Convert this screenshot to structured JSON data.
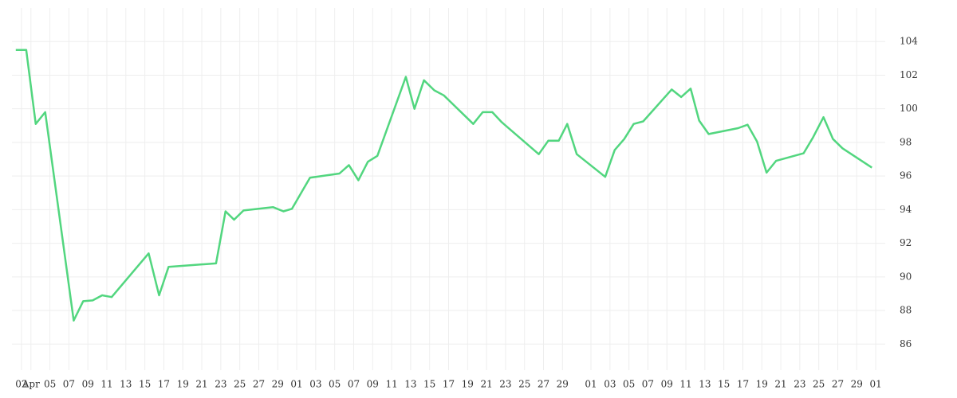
{
  "chart_data": {
    "type": "line",
    "x": [
      -0.6,
      0.5,
      1.5,
      2.5,
      5.5,
      6.5,
      7.5,
      8.5,
      9.5,
      12.5,
      13.4,
      14.5,
      15.5,
      20.5,
      21.5,
      22.4,
      23.4,
      26.5,
      27.6,
      28.5,
      30.4,
      33.5,
      34.5,
      35.5,
      36.5,
      37.5,
      40.5,
      41.4,
      42.4,
      43.5,
      44.5,
      47.6,
      48.6,
      49.6,
      50.6,
      54.5,
      55.5,
      56.6,
      57.5,
      58.5,
      61.5,
      62.5,
      63.5,
      64.5,
      65.5,
      68.5,
      69.5,
      70.5,
      71.4,
      72.4,
      75.5,
      76.5,
      77.5,
      78.5,
      79.5,
      82.4,
      83.4,
      84.5,
      85.5,
      86.5,
      89.6
    ],
    "series": [
      {
        "color": "#52d67f",
        "values": [
          103.5,
          103.5,
          99.1,
          99.8,
          87.4,
          88.55,
          88.6,
          88.9,
          88.8,
          90.8,
          91.4,
          88.9,
          90.6,
          90.8,
          93.9,
          93.4,
          93.95,
          94.15,
          93.9,
          94.05,
          95.9,
          96.15,
          96.65,
          95.75,
          96.85,
          97.2,
          101.9,
          100.0,
          101.7,
          101.1,
          100.8,
          99.1,
          99.8,
          99.8,
          99.2,
          97.3,
          98.1,
          98.1,
          99.1,
          97.3,
          95.95,
          97.55,
          98.2,
          99.1,
          99.25,
          101.15,
          100.7,
          101.2,
          99.3,
          98.5,
          98.85,
          99.05,
          98.05,
          96.2,
          96.9,
          97.35,
          98.3,
          99.5,
          98.2,
          97.65,
          96.5
        ]
      }
    ],
    "xlim": [
      -1,
      91
    ],
    "xticks": [
      {
        "value": 0,
        "label": "02"
      },
      {
        "value": 1,
        "label": "Apr"
      },
      {
        "value": 3,
        "label": "05"
      },
      {
        "value": 5,
        "label": "07"
      },
      {
        "value": 7,
        "label": "09"
      },
      {
        "value": 9,
        "label": "11"
      },
      {
        "value": 11,
        "label": "13"
      },
      {
        "value": 13,
        "label": "15"
      },
      {
        "value": 15,
        "label": "17"
      },
      {
        "value": 17,
        "label": "19"
      },
      {
        "value": 19,
        "label": "21"
      },
      {
        "value": 21,
        "label": "23"
      },
      {
        "value": 23,
        "label": "25"
      },
      {
        "value": 25,
        "label": "27"
      },
      {
        "value": 27,
        "label": "29"
      },
      {
        "value": 29,
        "label": "01"
      },
      {
        "value": 31,
        "label": "03"
      },
      {
        "value": 33,
        "label": "05"
      },
      {
        "value": 35,
        "label": "07"
      },
      {
        "value": 37,
        "label": "09"
      },
      {
        "value": 39,
        "label": "11"
      },
      {
        "value": 41,
        "label": "13"
      },
      {
        "value": 43,
        "label": "15"
      },
      {
        "value": 45,
        "label": "17"
      },
      {
        "value": 47,
        "label": "19"
      },
      {
        "value": 49,
        "label": "21"
      },
      {
        "value": 51,
        "label": "23"
      },
      {
        "value": 53,
        "label": "25"
      },
      {
        "value": 55,
        "label": "27"
      },
      {
        "value": 57,
        "label": "29"
      },
      {
        "value": 60,
        "label": "01"
      },
      {
        "value": 62,
        "label": "03"
      },
      {
        "value": 64,
        "label": "05"
      },
      {
        "value": 66,
        "label": "07"
      },
      {
        "value": 68,
        "label": "09"
      },
      {
        "value": 70,
        "label": "11"
      },
      {
        "value": 72,
        "label": "13"
      },
      {
        "value": 74,
        "label": "15"
      },
      {
        "value": 76,
        "label": "17"
      },
      {
        "value": 78,
        "label": "19"
      },
      {
        "value": 80,
        "label": "21"
      },
      {
        "value": 82,
        "label": "23"
      },
      {
        "value": 84,
        "label": "25"
      },
      {
        "value": 86,
        "label": "27"
      },
      {
        "value": 88,
        "label": "29"
      },
      {
        "value": 90,
        "label": "01"
      }
    ],
    "ylim": [
      84.45,
      106
    ],
    "yticks": [
      86,
      88,
      90,
      92,
      94,
      96,
      98,
      100,
      102,
      104
    ],
    "grid": true
  }
}
